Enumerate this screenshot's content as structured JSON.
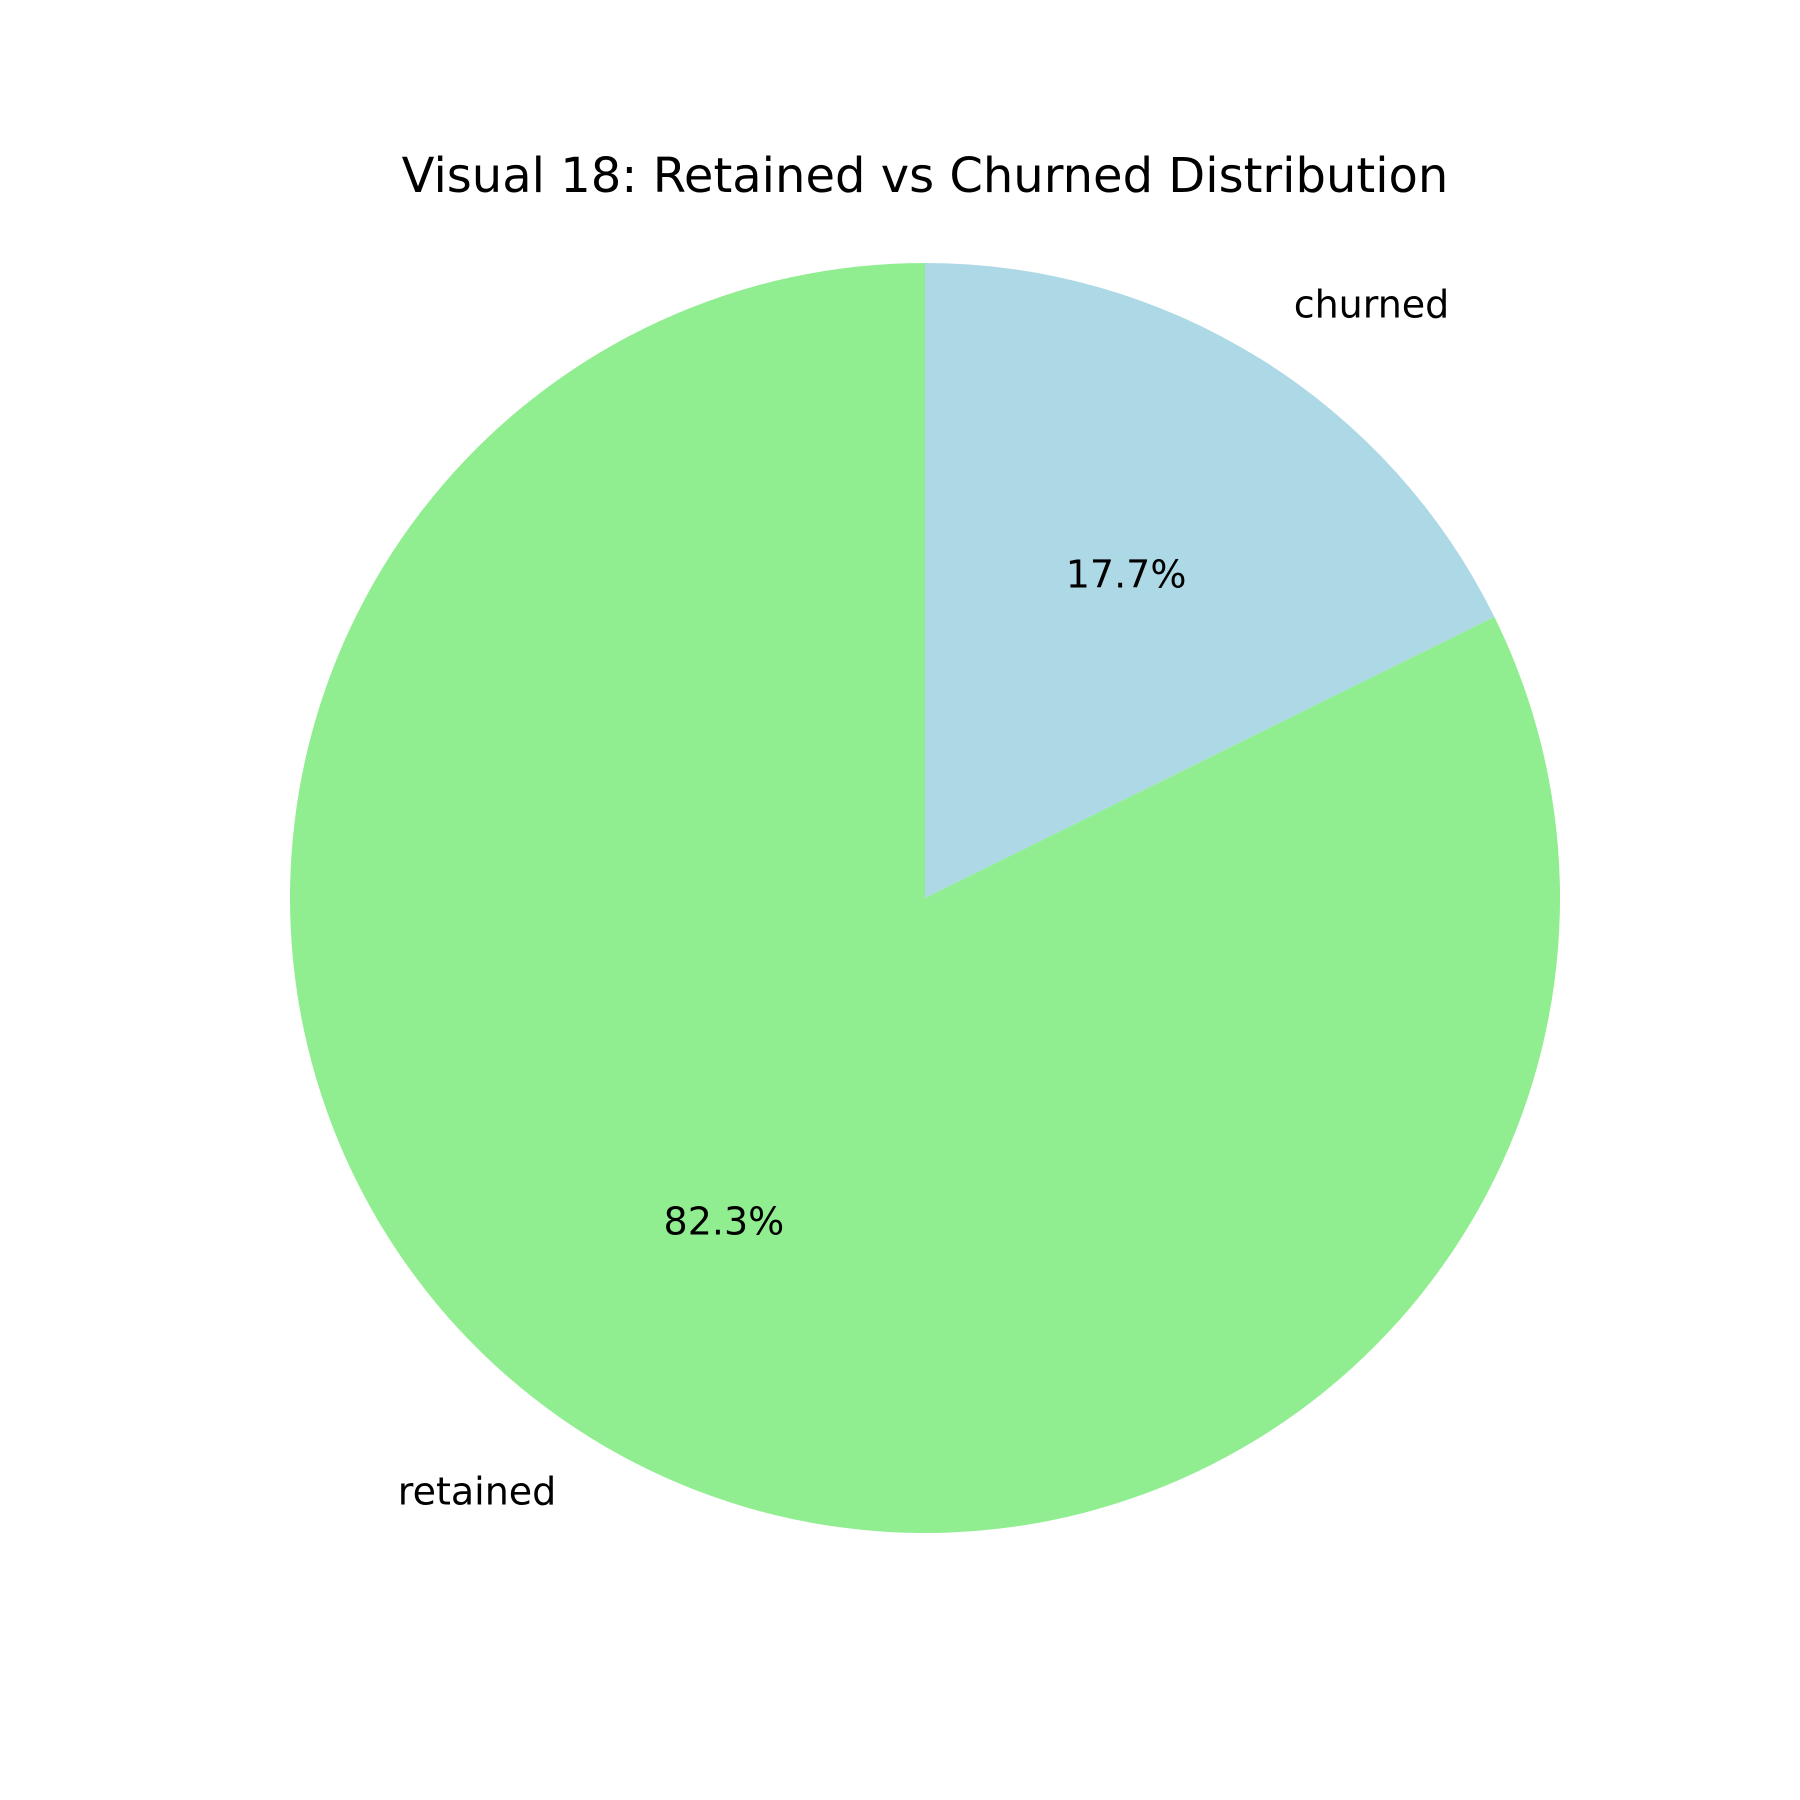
{
  "chart_data": {
    "type": "pie",
    "title": "Visual 18: Retained vs Churned Distribution",
    "slices": [
      {
        "label": "churned",
        "value": 17.7,
        "pct_label": "17.7%",
        "color": "#add8e6"
      },
      {
        "label": "retained",
        "value": 82.3,
        "pct_label": "82.3%",
        "color": "#90ee90"
      }
    ],
    "start_angle_deg": 90,
    "direction": "clockwise"
  }
}
